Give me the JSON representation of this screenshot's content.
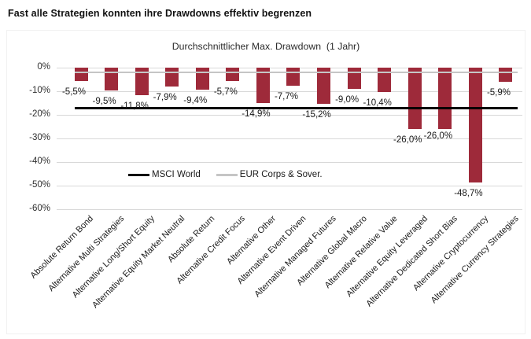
{
  "page": {
    "title": "Fast alle Strategien konnten ihre Drawdowns effektiv begrenzen"
  },
  "chart_data": {
    "type": "bar",
    "title": "Durchschnittlicher Max. Drawdown  (1 Jahr)",
    "categories": [
      "Absolute Return Bond",
      "Alternative Multi Strategies",
      "Alternative Long/Short Equity",
      "Alternative Equity Market Neutral",
      "Absolute Return",
      "Alternative Credit Focus",
      "Alternative Other",
      "Alternative Event Driven",
      "Alternative Managed Futures",
      "Alternative Global Macro",
      "Alternative Relative Value",
      "Alternative Equity Leveraged",
      "Alternative Dedicated Short Bias",
      "Alternative Cryptocurrency",
      "Alternative Currency Strategies"
    ],
    "values": [
      -5.5,
      -9.5,
      -11.8,
      -7.9,
      -9.4,
      -5.7,
      -14.9,
      -7.7,
      -15.2,
      -9.0,
      -10.4,
      -26.0,
      -26.0,
      -48.7,
      -5.9
    ],
    "value_labels": [
      "-5,5%",
      "-9,5%",
      "-11,8%",
      "-7,9%",
      "-9,4%",
      "-5,7%",
      "-14,9%",
      "-7,7%",
      "-15,2%",
      "-9,0%",
      "-10,4%",
      "-26,0%",
      "-26,0%",
      "-48,7%",
      "-5,9%"
    ],
    "xlabel": "",
    "ylabel": "",
    "ylim": [
      -60,
      0
    ],
    "yticks": [
      0,
      -10,
      -20,
      -30,
      -40,
      -50,
      -60
    ],
    "ytick_labels": [
      "0%",
      "-10%",
      "-20%",
      "-30%",
      "-40%",
      "-50%",
      "-60%"
    ],
    "grid": true,
    "legend_position": "inside-middle-left",
    "bar_color": "#9E2A3A",
    "grid_color": "#D8D8D8",
    "text_color": "#1A1A1A",
    "benchmark_lines": [
      {
        "name": "MSCI World",
        "value": -17.3,
        "color": "#000000",
        "thickness": 3
      },
      {
        "name": "EUR Corps & Sover.",
        "value": -2.0,
        "color": "#C5C5C5",
        "thickness": 2.5
      }
    ],
    "value_label_dy": {
      "12": -5
    }
  }
}
